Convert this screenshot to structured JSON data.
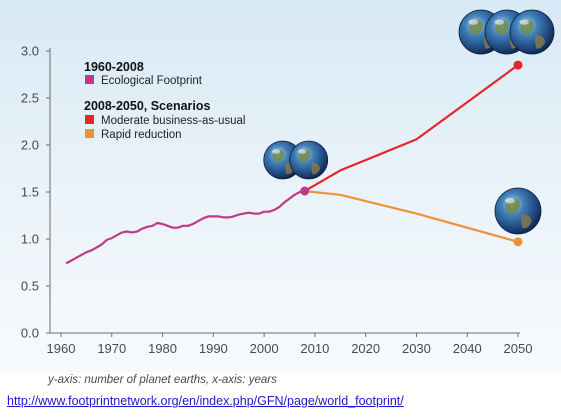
{
  "chart_data": {
    "type": "line",
    "x_ticks": [
      1960,
      1970,
      1980,
      1990,
      2000,
      2010,
      2020,
      2030,
      2040,
      2050
    ],
    "y_ticks": [
      "0.0",
      "0.5",
      "1.0",
      "1.5",
      "2.0",
      "2.5",
      "3.0"
    ],
    "xlim": [
      1958,
      2052
    ],
    "ylim": [
      0,
      3.0
    ],
    "grid": false,
    "legend": {
      "group1_title": "1960-2008",
      "group2_title": "2008-2050, Scenarios",
      "placement": "top-left"
    },
    "series": [
      {
        "name": "Ecological Footprint",
        "color": "#c0398b",
        "x": [
          1961,
          1962,
          1963,
          1964,
          1965,
          1966,
          1967,
          1968,
          1969,
          1970,
          1971,
          1972,
          1973,
          1974,
          1975,
          1976,
          1977,
          1978,
          1979,
          1980,
          1981,
          1982,
          1983,
          1984,
          1985,
          1986,
          1987,
          1988,
          1989,
          1990,
          1991,
          1992,
          1993,
          1994,
          1995,
          1996,
          1997,
          1998,
          1999,
          2000,
          2001,
          2002,
          2003,
          2004,
          2005,
          2006,
          2007,
          2008
        ],
        "y": [
          0.74,
          0.77,
          0.8,
          0.83,
          0.86,
          0.88,
          0.91,
          0.94,
          0.99,
          1.01,
          1.04,
          1.07,
          1.08,
          1.07,
          1.08,
          1.11,
          1.13,
          1.14,
          1.17,
          1.16,
          1.14,
          1.12,
          1.12,
          1.14,
          1.14,
          1.16,
          1.19,
          1.22,
          1.24,
          1.24,
          1.24,
          1.23,
          1.23,
          1.24,
          1.26,
          1.27,
          1.28,
          1.27,
          1.27,
          1.29,
          1.29,
          1.31,
          1.34,
          1.39,
          1.43,
          1.47,
          1.5,
          1.51
        ]
      },
      {
        "name": "Moderate business-as-usual",
        "color": "#e8232a",
        "x": [
          2008,
          2015,
          2030,
          2050
        ],
        "y": [
          1.51,
          1.73,
          2.06,
          2.85
        ]
      },
      {
        "name": "Rapid reduction",
        "color": "#f0913a",
        "x": [
          2008,
          2015,
          2030,
          2050
        ],
        "y": [
          1.51,
          1.47,
          1.27,
          0.97
        ]
      }
    ],
    "globe_markers": [
      {
        "x": 2008,
        "y": 1.51,
        "count": 2
      },
      {
        "x": 2050,
        "y": 2.85,
        "count": 3
      },
      {
        "x": 2050,
        "y": 0.97,
        "count": 1
      }
    ]
  },
  "caption": "y-axis: number of planet earths, x-axis: years",
  "source_url": "http://www.footprintnetwork.org/en/index.php/GFN/page/world_footprint/"
}
